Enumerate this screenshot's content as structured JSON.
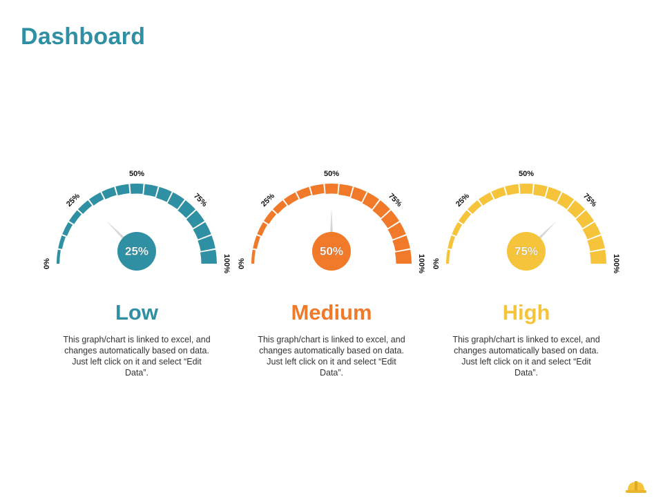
{
  "page": {
    "title": "Dashboard"
  },
  "tick_labels": [
    "0%",
    "25%",
    "50%",
    "75%",
    "100%"
  ],
  "chart_data": [
    {
      "type": "gauge",
      "value": 25,
      "value_label": "25%",
      "range": [
        0,
        100
      ],
      "level_label": "Low",
      "description": "This graph/chart is linked to excel, and changes automatically based on data. Just left click on it and select “Edit Data”.",
      "color": "#2f8fa3"
    },
    {
      "type": "gauge",
      "value": 50,
      "value_label": "50%",
      "range": [
        0,
        100
      ],
      "level_label": "Medium",
      "description": "This graph/chart is linked to excel, and changes automatically based on data. Just left click on it and select “Edit Data”.",
      "color": "#f07a2a"
    },
    {
      "type": "gauge",
      "value": 75,
      "value_label": "75%",
      "range": [
        0,
        100
      ],
      "level_label": "High",
      "description": "This graph/chart is linked to excel, and changes automatically based on data. Just left click on it and select “Edit Data”.",
      "color": "#f6c43a"
    }
  ],
  "icons": {
    "corner": "hard-hat-icon"
  },
  "colors": {
    "title": "#2f8fa3",
    "needle": "#d7d7d7",
    "hat": "#f6c43a"
  }
}
